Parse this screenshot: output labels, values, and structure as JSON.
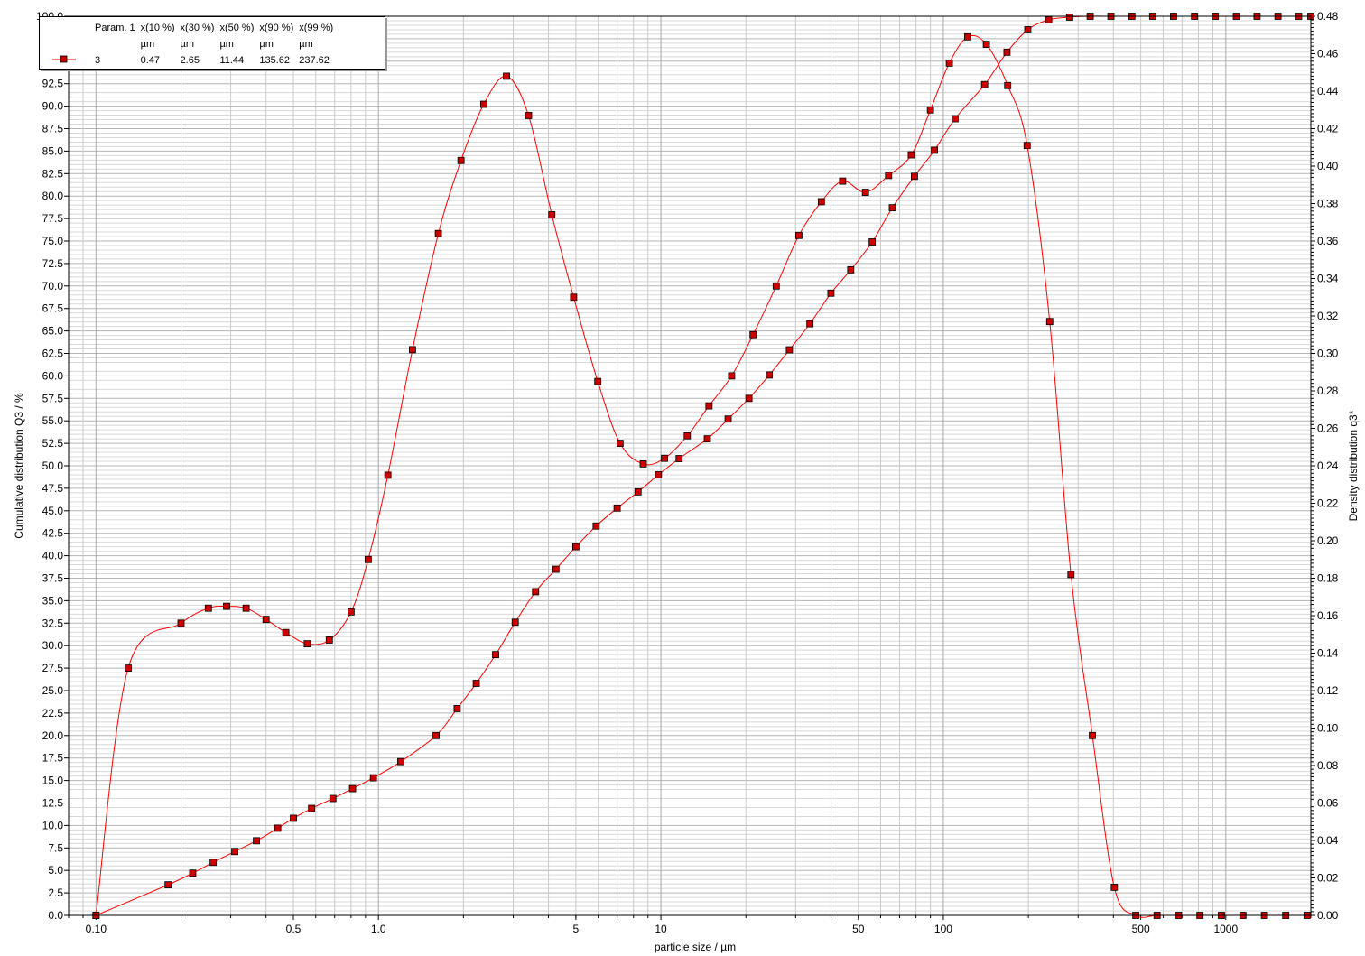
{
  "chart_data": {
    "type": "line",
    "xlabel": "particle size / µm",
    "ylabel_left": "Cumulative distribution Q3 / %",
    "ylabel_right": "Density distribution q3*",
    "xscale": "log",
    "xlim": [
      0.08,
      2000
    ],
    "ylim_left": [
      0,
      100
    ],
    "ylim_right": [
      0,
      0.48
    ],
    "grid": true,
    "x_ticks": [
      {
        "value": 0.1,
        "label": "0.10"
      },
      {
        "value": 0.5,
        "label": "0.5"
      },
      {
        "value": 1,
        "label": "1.0"
      },
      {
        "value": 5,
        "label": "5"
      },
      {
        "value": 10,
        "label": "10"
      },
      {
        "value": 50,
        "label": "50"
      },
      {
        "value": 100,
        "label": "100"
      },
      {
        "value": 500,
        "label": "500"
      },
      {
        "value": 1000,
        "label": "1000"
      }
    ],
    "y_ticks_left": [
      "0.0",
      "2.5",
      "5.0",
      "7.5",
      "10.0",
      "12.5",
      "15.0",
      "17.5",
      "20.0",
      "22.5",
      "25.0",
      "27.5",
      "30.0",
      "32.5",
      "35.0",
      "37.5",
      "40.0",
      "42.5",
      "45.0",
      "47.5",
      "50.0",
      "52.5",
      "55.0",
      "57.5",
      "60.0",
      "62.5",
      "65.0",
      "67.5",
      "70.0",
      "72.5",
      "75.0",
      "77.5",
      "80.0",
      "82.5",
      "85.0",
      "87.5",
      "90.0",
      "92.5",
      "100.0"
    ],
    "y_ticks_right": [
      "0.00",
      "0.02",
      "0.04",
      "0.06",
      "0.08",
      "0.10",
      "0.12",
      "0.14",
      "0.16",
      "0.18",
      "0.20",
      "0.22",
      "0.24",
      "0.26",
      "0.28",
      "0.30",
      "0.32",
      "0.34",
      "0.36",
      "0.38",
      "0.40",
      "0.42",
      "0.44",
      "0.46",
      "0.48"
    ],
    "series": [
      {
        "axis": "left",
        "color": "#ff0000",
        "marker": "square",
        "marker_color": "#cc0000",
        "points": [
          [
            0.1,
            0
          ],
          [
            0.18,
            3.4
          ],
          [
            0.22,
            4.7
          ],
          [
            0.26,
            5.9
          ],
          [
            0.31,
            7.1
          ],
          [
            0.37,
            8.3
          ],
          [
            0.44,
            9.7
          ],
          [
            0.5,
            10.8
          ],
          [
            0.58,
            11.9
          ],
          [
            0.69,
            13.0
          ],
          [
            0.81,
            14.1
          ],
          [
            0.96,
            15.3
          ],
          [
            1.2,
            17.1
          ],
          [
            1.6,
            20.0
          ],
          [
            1.9,
            23.0
          ],
          [
            2.22,
            25.8
          ],
          [
            2.6,
            29.0
          ],
          [
            3.05,
            32.6
          ],
          [
            3.6,
            36.0
          ],
          [
            4.25,
            38.5
          ],
          [
            5.0,
            41.0
          ],
          [
            5.9,
            43.3
          ],
          [
            7.0,
            45.3
          ],
          [
            8.3,
            47.1
          ],
          [
            9.8,
            49.0
          ],
          [
            11.6,
            50.8
          ],
          [
            14.6,
            53.0
          ],
          [
            17.3,
            55.2
          ],
          [
            20.5,
            57.5
          ],
          [
            24.2,
            60.1
          ],
          [
            28.5,
            62.9
          ],
          [
            33.7,
            65.8
          ],
          [
            40,
            69.2
          ],
          [
            47,
            71.8
          ],
          [
            56,
            74.9
          ],
          [
            66,
            78.7
          ],
          [
            79,
            82.2
          ],
          [
            93,
            85.1
          ],
          [
            110,
            88.6
          ],
          [
            140,
            92.4
          ],
          [
            168,
            96.0
          ],
          [
            199,
            98.5
          ],
          [
            236,
            99.6
          ],
          [
            280,
            99.9
          ],
          [
            331,
            100
          ],
          [
            392,
            100
          ],
          [
            465,
            100
          ],
          [
            551,
            100
          ],
          [
            653,
            100
          ],
          [
            775,
            100
          ],
          [
            918,
            100
          ],
          [
            1090,
            100
          ],
          [
            1290,
            100
          ],
          [
            1530,
            100
          ],
          [
            1810,
            100
          ],
          [
            2000,
            100
          ]
        ]
      },
      {
        "axis": "right",
        "color": "#ff0000",
        "marker": "square",
        "marker_color": "#cc0000",
        "points": [
          [
            0.1,
            0
          ],
          [
            0.13,
            0.132
          ],
          [
            0.2,
            0.156
          ],
          [
            0.25,
            0.164
          ],
          [
            0.29,
            0.165
          ],
          [
            0.34,
            0.164
          ],
          [
            0.4,
            0.158
          ],
          [
            0.47,
            0.151
          ],
          [
            0.56,
            0.145
          ],
          [
            0.67,
            0.147
          ],
          [
            0.8,
            0.162
          ],
          [
            0.92,
            0.19
          ],
          [
            1.08,
            0.235
          ],
          [
            1.32,
            0.302
          ],
          [
            1.63,
            0.364
          ],
          [
            1.96,
            0.403
          ],
          [
            2.36,
            0.433
          ],
          [
            2.84,
            0.448
          ],
          [
            3.4,
            0.427
          ],
          [
            4.11,
            0.374
          ],
          [
            4.91,
            0.33
          ],
          [
            5.98,
            0.285
          ],
          [
            7.17,
            0.252
          ],
          [
            8.66,
            0.241
          ],
          [
            10.3,
            0.244
          ],
          [
            12.4,
            0.256
          ],
          [
            14.8,
            0.272
          ],
          [
            17.8,
            0.288
          ],
          [
            21.2,
            0.31
          ],
          [
            25.6,
            0.336
          ],
          [
            30.8,
            0.363
          ],
          [
            37,
            0.381
          ],
          [
            44,
            0.392
          ],
          [
            53,
            0.386
          ],
          [
            64,
            0.395
          ],
          [
            77,
            0.406
          ],
          [
            90,
            0.43
          ],
          [
            105,
            0.455
          ],
          [
            122,
            0.469
          ],
          [
            142,
            0.465
          ],
          [
            169,
            0.443
          ],
          [
            198,
            0.411
          ],
          [
            238,
            0.317
          ],
          [
            283,
            0.182
          ],
          [
            337,
            0.096
          ],
          [
            403,
            0.015
          ],
          [
            480,
            0
          ],
          [
            571,
            0
          ],
          [
            680,
            0
          ],
          [
            810,
            0
          ],
          [
            965,
            0
          ],
          [
            1150,
            0
          ],
          [
            1370,
            0
          ],
          [
            1630,
            0
          ],
          [
            1940,
            0
          ]
        ]
      }
    ]
  },
  "legend": {
    "headers": [
      "Param. 1",
      "x(10 %)",
      "x(30 %)",
      "x(50 %)",
      "x(90 %)",
      "x(99 %)"
    ],
    "units": [
      "",
      "µm",
      "µm",
      "µm",
      "µm",
      "µm"
    ],
    "row": [
      "3",
      "0.47",
      "2.65",
      "11.44",
      "135.62",
      "237.62"
    ]
  }
}
